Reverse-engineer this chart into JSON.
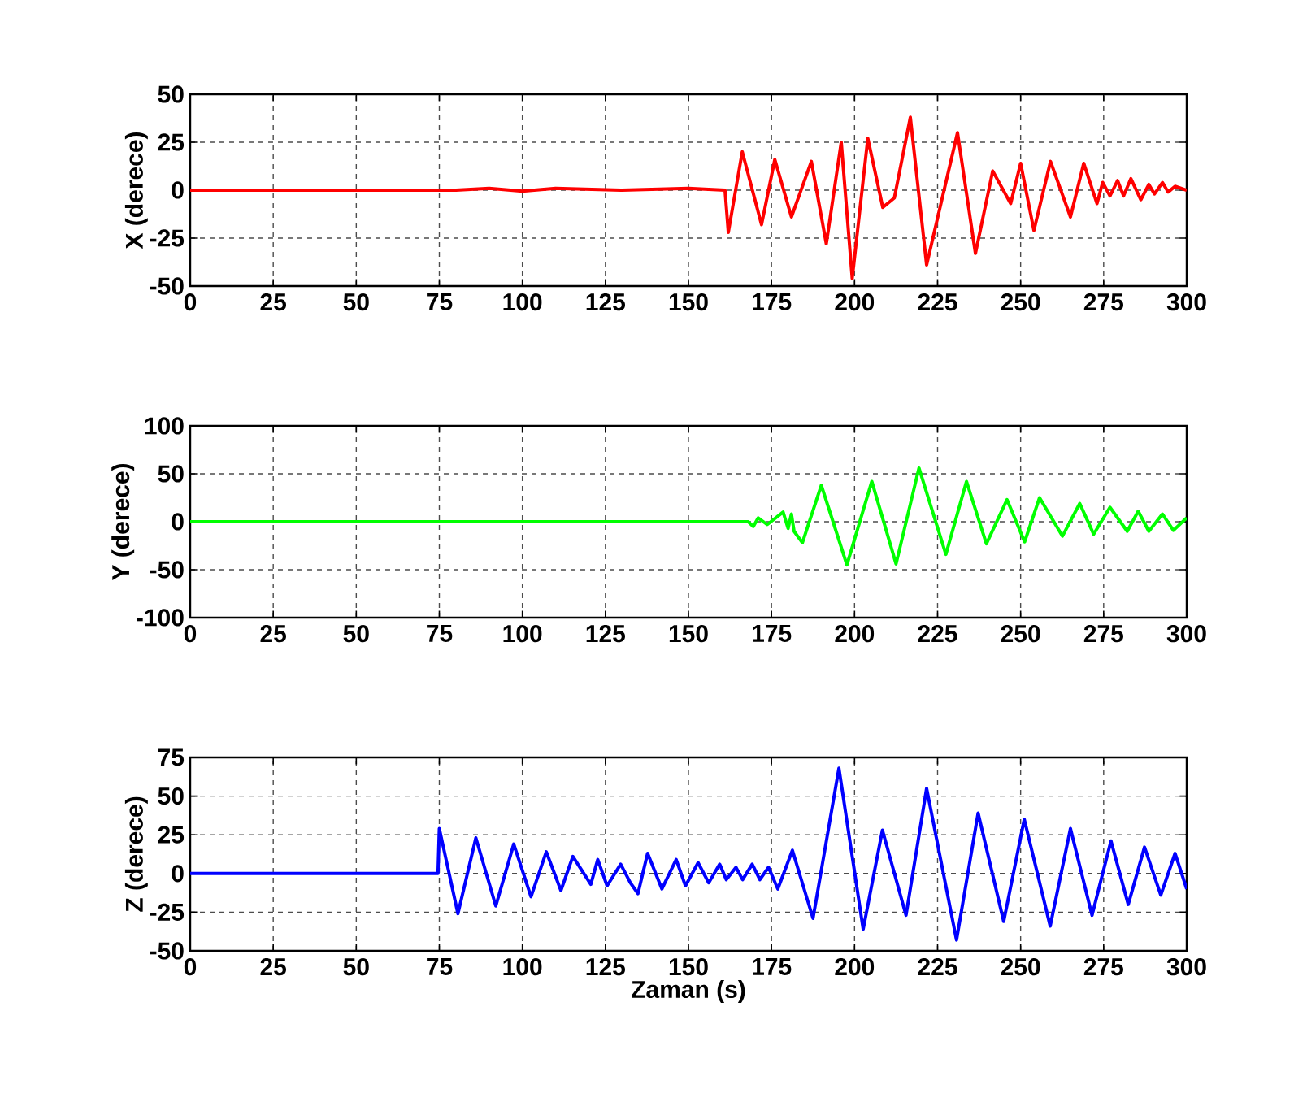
{
  "chart_data": [
    {
      "type": "line",
      "ylabel": "X (derece)",
      "color": "#ff0000",
      "grid": true,
      "xlim": [
        0,
        300
      ],
      "ylim": [
        -50,
        50
      ],
      "xticks": [
        0,
        25,
        50,
        75,
        100,
        125,
        150,
        175,
        200,
        225,
        250,
        275,
        300
      ],
      "yticks": [
        -50,
        -25,
        0,
        25,
        50
      ],
      "x": [
        0,
        80,
        90,
        100,
        110,
        130,
        150,
        161,
        162,
        166.2,
        172,
        176,
        181,
        187,
        191.5,
        196,
        199.3,
        204,
        208.5,
        212,
        216.8,
        221.7,
        231,
        236.4,
        241.6,
        247,
        250,
        254,
        259,
        265,
        269,
        273,
        274.7,
        276.9,
        279.2,
        281,
        283.2,
        286.2,
        288.6,
        290.3,
        292.7,
        294.4,
        296.5,
        300
      ],
      "values": [
        0,
        0,
        1,
        -0.5,
        1,
        0,
        1,
        0,
        -22,
        20,
        -18,
        16,
        -14,
        15,
        -28,
        25,
        -46,
        27,
        -9,
        -4,
        38,
        -39,
        30,
        -33,
        10,
        -7,
        14,
        -21,
        15,
        -14,
        14,
        -7,
        4,
        -3,
        5,
        -3,
        6,
        -5,
        3,
        -2,
        4,
        -1,
        2,
        0
      ]
    },
    {
      "type": "line",
      "ylabel": "Y (derece)",
      "color": "#00ff00",
      "grid": true,
      "xlim": [
        0,
        300
      ],
      "ylim": [
        -100,
        100
      ],
      "xticks": [
        0,
        25,
        50,
        75,
        100,
        125,
        150,
        175,
        200,
        225,
        250,
        275,
        300
      ],
      "yticks": [
        -100,
        -50,
        0,
        50,
        100
      ],
      "x": [
        0,
        168,
        169.5,
        171,
        173.7,
        178.5,
        180,
        181,
        181.8,
        184.3,
        190,
        197.7,
        205.2,
        212.5,
        219.4,
        227.5,
        233.7,
        239.7,
        245.9,
        251.2,
        255.7,
        262.6,
        267.8,
        272,
        276.9,
        282.1,
        285.4,
        288.6,
        292.7,
        296,
        300
      ],
      "values": [
        0,
        0,
        -5,
        4,
        -3,
        10,
        -7,
        8,
        -10,
        -22,
        38,
        -45,
        42,
        -44,
        56,
        -34,
        42,
        -23,
        23,
        -21,
        25,
        -15,
        19,
        -13,
        15,
        -10,
        11,
        -10,
        8,
        -9,
        4
      ]
    },
    {
      "type": "line",
      "ylabel": "Z (derece)",
      "xlabel": "Zaman (s)",
      "color": "#0000ff",
      "grid": true,
      "xlim": [
        0,
        300
      ],
      "ylim": [
        -50,
        75
      ],
      "xticks": [
        0,
        25,
        50,
        75,
        100,
        125,
        150,
        175,
        200,
        225,
        250,
        275,
        300
      ],
      "yticks": [
        -50,
        -25,
        0,
        25,
        50,
        75
      ],
      "x": [
        0,
        74.6,
        75,
        80.6,
        86,
        92,
        97.4,
        102.6,
        107.2,
        111.6,
        115.2,
        120.6,
        122.7,
        125.5,
        129.6,
        132.5,
        134.8,
        137.7,
        142,
        146.3,
        149.1,
        152.9,
        156.1,
        159.4,
        161.4,
        164.3,
        166.3,
        169.2,
        171.5,
        174.1,
        176.9,
        181.3,
        187.5,
        195.3,
        202.6,
        208.4,
        215.5,
        221.7,
        230.7,
        237.2,
        244.9,
        251.1,
        258.9,
        265,
        271.5,
        277.2,
        282.4,
        287.3,
        292.2,
        296.5,
        300
      ],
      "values": [
        0,
        0,
        29,
        -26,
        23,
        -21,
        19,
        -15,
        14,
        -11,
        11,
        -7,
        9,
        -8,
        6,
        -6,
        -13,
        13,
        -10,
        9,
        -8,
        7,
        -6,
        6,
        -4,
        4,
        -4,
        6,
        -4,
        4,
        -10,
        15,
        -29,
        68,
        -36,
        28,
        -27,
        55,
        -43,
        39,
        -31,
        35,
        -34,
        29,
        -27,
        21,
        -20,
        17,
        -14,
        13,
        -10
      ]
    }
  ]
}
